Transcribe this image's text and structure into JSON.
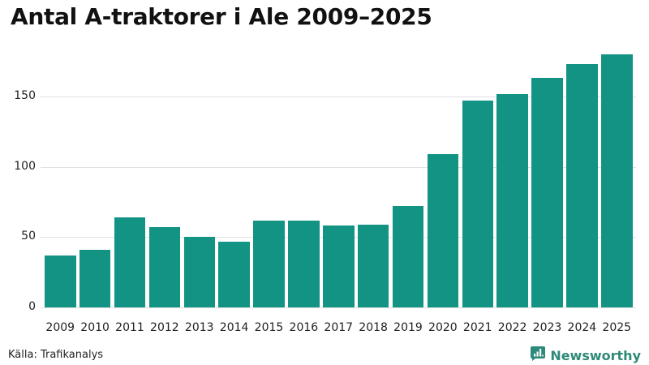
{
  "title": "Antal A-traktorer i Ale 2009–2025",
  "source": "Källa: Trafikanalys",
  "brand": {
    "name": "Newsworthy",
    "icon": "newsworthy-logo-icon",
    "color": "#2e8a7a"
  },
  "colors": {
    "bar": "#139384",
    "grid": "#e2e2e6"
  },
  "chart_data": {
    "type": "bar",
    "title": "Antal A-traktorer i Ale 2009–2025",
    "xlabel": "",
    "ylabel": "",
    "categories": [
      "2009",
      "2010",
      "2011",
      "2012",
      "2013",
      "2014",
      "2015",
      "2016",
      "2017",
      "2018",
      "2019",
      "2020",
      "2021",
      "2022",
      "2023",
      "2024",
      "2025"
    ],
    "values": [
      37,
      41,
      64,
      57,
      50,
      47,
      62,
      62,
      58,
      59,
      72,
      109,
      147,
      152,
      163,
      173,
      180
    ],
    "yticks": [
      0,
      50,
      100,
      150
    ],
    "ylim": [
      0,
      180
    ],
    "grid": true,
    "legend": null,
    "source": "Källa: Trafikanalys"
  }
}
